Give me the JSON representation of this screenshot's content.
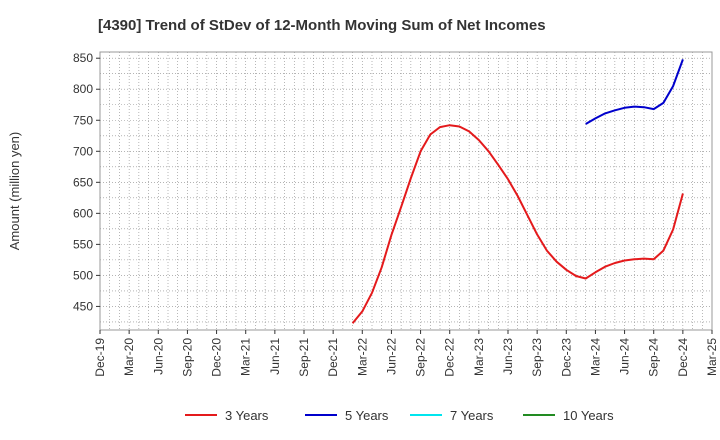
{
  "chart_data": {
    "type": "line",
    "title": "[4390]  Trend of StDev of 12-Month Moving Sum of Net Incomes",
    "ylabel": "Amount (million yen)",
    "xlabel": "",
    "ylim": [
      412,
      860
    ],
    "yticks": [
      450,
      500,
      550,
      600,
      650,
      700,
      750,
      800,
      850
    ],
    "xlim": [
      "2019-12",
      "2025-03"
    ],
    "x_tick_labels": [
      "Dec-19",
      "Mar-20",
      "Jun-20",
      "Sep-20",
      "Dec-20",
      "Mar-21",
      "Jun-21",
      "Sep-21",
      "Dec-21",
      "Mar-22",
      "Jun-22",
      "Sep-22",
      "Dec-22",
      "Mar-23",
      "Jun-23",
      "Sep-23",
      "Dec-23",
      "Mar-24",
      "Jun-24",
      "Sep-24",
      "Dec-24",
      "Mar-25"
    ],
    "grid": true,
    "legend_position": "bottom",
    "series": [
      {
        "name": "3 Years",
        "color": "#e41a1c",
        "points": [
          [
            "2022-02",
            423
          ],
          [
            "2022-03",
            442
          ],
          [
            "2022-04",
            472
          ],
          [
            "2022-05",
            513
          ],
          [
            "2022-06",
            565
          ],
          [
            "2022-07",
            610
          ],
          [
            "2022-08",
            657
          ],
          [
            "2022-09",
            700
          ],
          [
            "2022-10",
            727
          ],
          [
            "2022-11",
            739
          ],
          [
            "2022-12",
            742
          ],
          [
            "2023-01",
            740
          ],
          [
            "2023-02",
            732
          ],
          [
            "2023-03",
            718
          ],
          [
            "2023-04",
            700
          ],
          [
            "2023-05",
            678
          ],
          [
            "2023-06",
            655
          ],
          [
            "2023-07",
            628
          ],
          [
            "2023-08",
            597
          ],
          [
            "2023-09",
            566
          ],
          [
            "2023-10",
            540
          ],
          [
            "2023-11",
            522
          ],
          [
            "2023-12",
            509
          ],
          [
            "2024-01",
            499
          ],
          [
            "2024-02",
            495
          ],
          [
            "2024-03",
            505
          ],
          [
            "2024-04",
            514
          ],
          [
            "2024-05",
            520
          ],
          [
            "2024-06",
            524
          ],
          [
            "2024-07",
            526
          ],
          [
            "2024-08",
            527
          ],
          [
            "2024-09",
            526
          ],
          [
            "2024-10",
            540
          ],
          [
            "2024-11",
            574
          ],
          [
            "2024-12",
            632
          ]
        ]
      },
      {
        "name": "5 Years",
        "color": "#0000cc",
        "points": [
          [
            "2024-02",
            744
          ],
          [
            "2024-03",
            753
          ],
          [
            "2024-04",
            761
          ],
          [
            "2024-05",
            766
          ],
          [
            "2024-06",
            770
          ],
          [
            "2024-07",
            772
          ],
          [
            "2024-08",
            771
          ],
          [
            "2024-09",
            768
          ],
          [
            "2024-10",
            778
          ],
          [
            "2024-11",
            805
          ],
          [
            "2024-12",
            848
          ]
        ]
      },
      {
        "name": "7 Years",
        "color": "#00e5ee",
        "points": []
      },
      {
        "name": "10 Years",
        "color": "#228b22",
        "points": []
      }
    ]
  }
}
